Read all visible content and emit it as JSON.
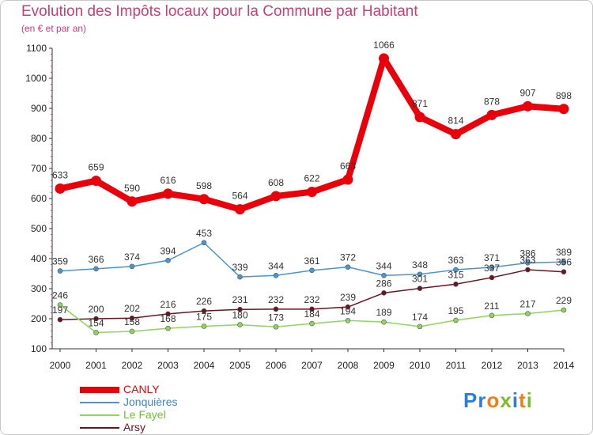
{
  "page": {
    "title": "Evolution des Impôts locaux pour la Commune par Habitant",
    "subtitle": "(en € et par an)"
  },
  "logo": {
    "text": "Proxiti",
    "letter_colors": [
      "#2b7fd4",
      "#2b7fd4",
      "#f07d18",
      "#7dbb2a",
      "#2b7fd4",
      "#f07d18",
      "#7dbb2a"
    ]
  },
  "chart_data": {
    "type": "line",
    "x": [
      "2000",
      "2001",
      "2002",
      "2003",
      "2004",
      "2005",
      "2006",
      "2007",
      "2008",
      "2009",
      "2010",
      "2011",
      "2012",
      "2013",
      "2014"
    ],
    "yticks": [
      "100",
      "200",
      "300",
      "400",
      "500",
      "600",
      "700",
      "800",
      "900",
      "1000",
      "1100"
    ],
    "ylim": [
      100,
      1100
    ],
    "grid": false,
    "legend_position": "bottom-left",
    "series": [
      {
        "name": "CANLY",
        "color": "#e8000b",
        "values": [
          633,
          659,
          590,
          616,
          598,
          564,
          608,
          622,
          663,
          1066,
          871,
          814,
          878,
          907,
          898
        ],
        "labels": [
          "633",
          "659",
          "590",
          "616",
          "598",
          "564",
          "608",
          "622",
          "663",
          "1066",
          "871",
          "814",
          "878",
          "907",
          "898"
        ]
      },
      {
        "name": "Jonquières",
        "color": "#4a94d1",
        "values": [
          359,
          366,
          374,
          394,
          453,
          339,
          344,
          361,
          372,
          344,
          348,
          363,
          371,
          386,
          389
        ],
        "labels": [
          "359",
          "366",
          "374",
          "394",
          "453",
          "339",
          "344",
          "361",
          "372",
          "344",
          "348",
          "363",
          "371",
          "386",
          "389"
        ]
      },
      {
        "name": "Le Fayel",
        "color": "#8fd45f",
        "values": [
          246,
          154,
          158,
          168,
          175,
          180,
          173,
          184,
          194,
          189,
          174,
          195,
          211,
          217,
          229
        ],
        "labels": [
          "246",
          "154",
          "158",
          "168",
          "175",
          "180",
          "173",
          "184",
          "194",
          "189",
          "174",
          "195",
          "211",
          "217",
          "229"
        ]
      },
      {
        "name": "Arsy",
        "color": "#6b1420",
        "values": [
          197,
          200,
          202,
          216,
          226,
          231,
          232,
          232,
          239,
          286,
          301,
          315,
          337,
          363,
          356
        ],
        "labels": [
          "197",
          "200",
          "202",
          "216",
          "226",
          "231",
          "232",
          "232",
          "239",
          "286",
          "301",
          "315",
          "337",
          "363",
          "356"
        ]
      }
    ]
  }
}
